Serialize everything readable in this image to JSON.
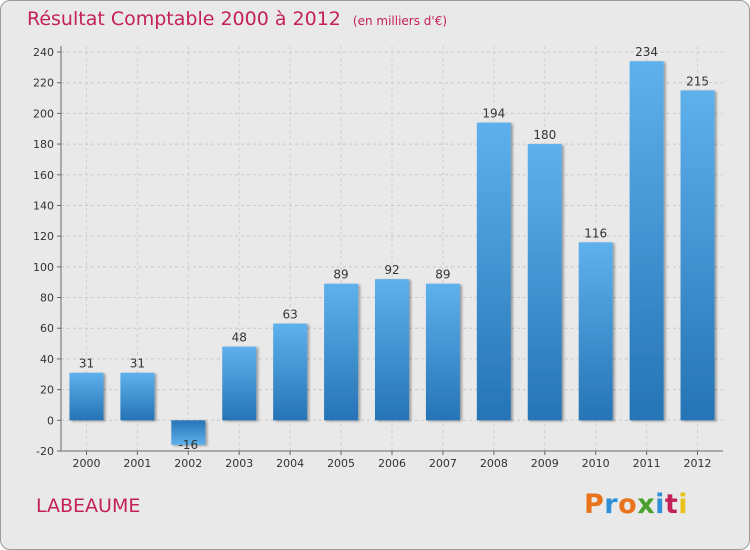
{
  "header": {
    "title": "Résultat Comptable 2000 à 2012",
    "subtitle": "(en milliers d'€)"
  },
  "footer": {
    "commune": "LABEAUME",
    "logo_text": "Proxiti"
  },
  "colors": {
    "accent": "#c4205a",
    "bar_light": "#5eb1ec",
    "bar_dark": "#2574b6",
    "background": "#e9e9e9",
    "logo_letters": [
      "#e8731a",
      "#2f8fd8",
      "#e8731a",
      "#4aa02c",
      "#2f8fd8",
      "#c4205a",
      "#e8c21a"
    ]
  },
  "chart_data": {
    "type": "bar",
    "categories": [
      "2000",
      "2001",
      "2002",
      "2003",
      "2004",
      "2005",
      "2006",
      "2007",
      "2008",
      "2009",
      "2010",
      "2011",
      "2012"
    ],
    "values": [
      31,
      31,
      -16,
      48,
      63,
      89,
      92,
      89,
      194,
      180,
      116,
      234,
      215
    ],
    "value_labels": [
      "31",
      "31",
      "-16",
      "48",
      "63",
      "89",
      "92",
      "89",
      "194",
      "180",
      "116",
      "234",
      "215"
    ],
    "yticks": [
      "-20",
      "0",
      "20",
      "40",
      "60",
      "80",
      "100",
      "120",
      "140",
      "160",
      "180",
      "200",
      "220",
      "240"
    ],
    "ylim": [
      -20,
      240
    ],
    "title": "Résultat Comptable 2000 à 2012",
    "xlabel": "",
    "ylabel": "",
    "grid": true
  }
}
